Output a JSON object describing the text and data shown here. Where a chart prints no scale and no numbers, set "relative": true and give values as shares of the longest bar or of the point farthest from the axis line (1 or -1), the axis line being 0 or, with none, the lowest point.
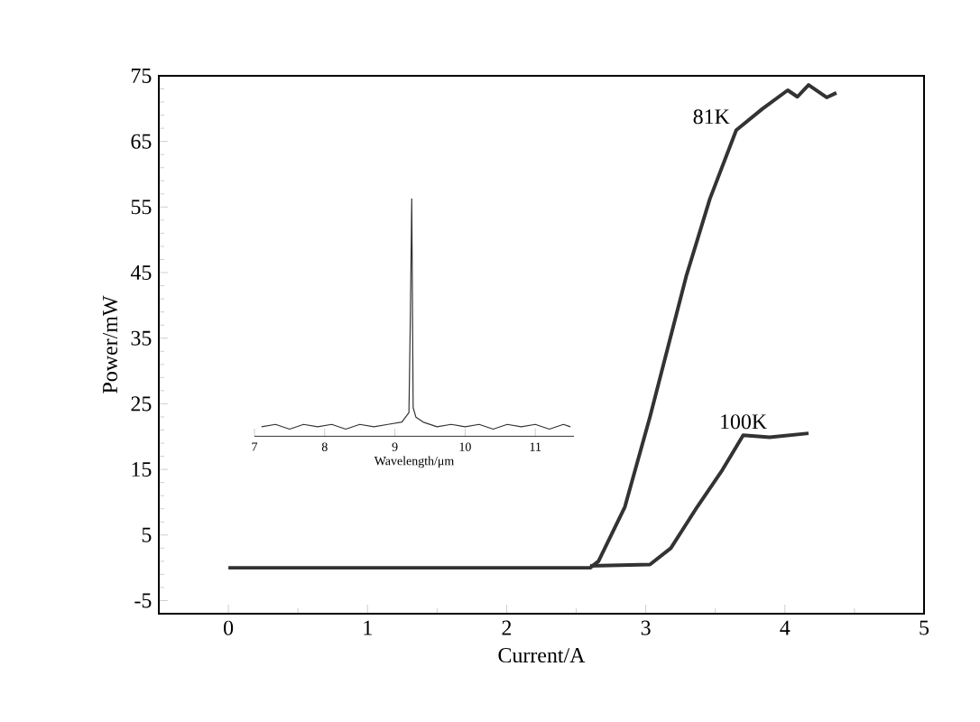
{
  "chart_data": [
    {
      "type": "line",
      "xlabel": "Current/A",
      "ylabel": "Power/mW",
      "xlim": [
        -0.5,
        5
      ],
      "ylim": [
        -7,
        75
      ],
      "xticks": [
        0,
        1,
        2,
        3,
        4,
        5
      ],
      "yticks": [
        -5,
        5,
        15,
        25,
        35,
        45,
        55,
        65,
        75
      ],
      "line_style": "solid",
      "series": [
        {
          "name": "81K",
          "color": "#333333",
          "x": [
            0,
            0.5,
            1,
            1.5,
            2,
            2.5,
            2.6,
            2.66,
            2.85,
            3.03,
            3.2,
            3.29,
            3.46,
            3.65,
            3.84,
            4.02,
            4.09,
            4.17,
            4.3,
            4.37
          ],
          "values": [
            0,
            0,
            0,
            0,
            0,
            0,
            0,
            1,
            9.3,
            23,
            37,
            44.4,
            56.2,
            66.7,
            70,
            72.8,
            71.8,
            73.6,
            71.7,
            72.4
          ]
        },
        {
          "name": "100K",
          "color": "#333333",
          "x": [
            2.6,
            3.03,
            3.18,
            3.37,
            3.55,
            3.7,
            3.89,
            4.17
          ],
          "values": [
            0.3,
            0.5,
            3,
            9.3,
            14.9,
            20.2,
            19.9,
            20.5
          ]
        }
      ]
    },
    {
      "type": "line",
      "relative": true,
      "tick_labels": "x",
      "xlabel": "Wavelength/μm",
      "xlim": [
        7,
        11.55
      ],
      "xticks": [
        7,
        8,
        9,
        10,
        11
      ],
      "series": [
        {
          "color": "#333333",
          "x": [
            7.1,
            7.3,
            7.5,
            7.7,
            7.9,
            8.1,
            8.3,
            8.5,
            8.7,
            8.9,
            9.1,
            9.2,
            9.22,
            9.24,
            9.26,
            9.3,
            9.4,
            9.6,
            9.8,
            10,
            10.2,
            10.4,
            10.6,
            10.8,
            11,
            11.2,
            11.4,
            11.5
          ],
          "values": [
            0.04,
            0.05,
            0.03,
            0.05,
            0.04,
            0.05,
            0.03,
            0.05,
            0.04,
            0.05,
            0.06,
            0.1,
            0.5,
            1,
            0.12,
            0.08,
            0.06,
            0.04,
            0.05,
            0.04,
            0.05,
            0.03,
            0.05,
            0.04,
            0.05,
            0.03,
            0.05,
            0.04
          ]
        }
      ]
    }
  ]
}
